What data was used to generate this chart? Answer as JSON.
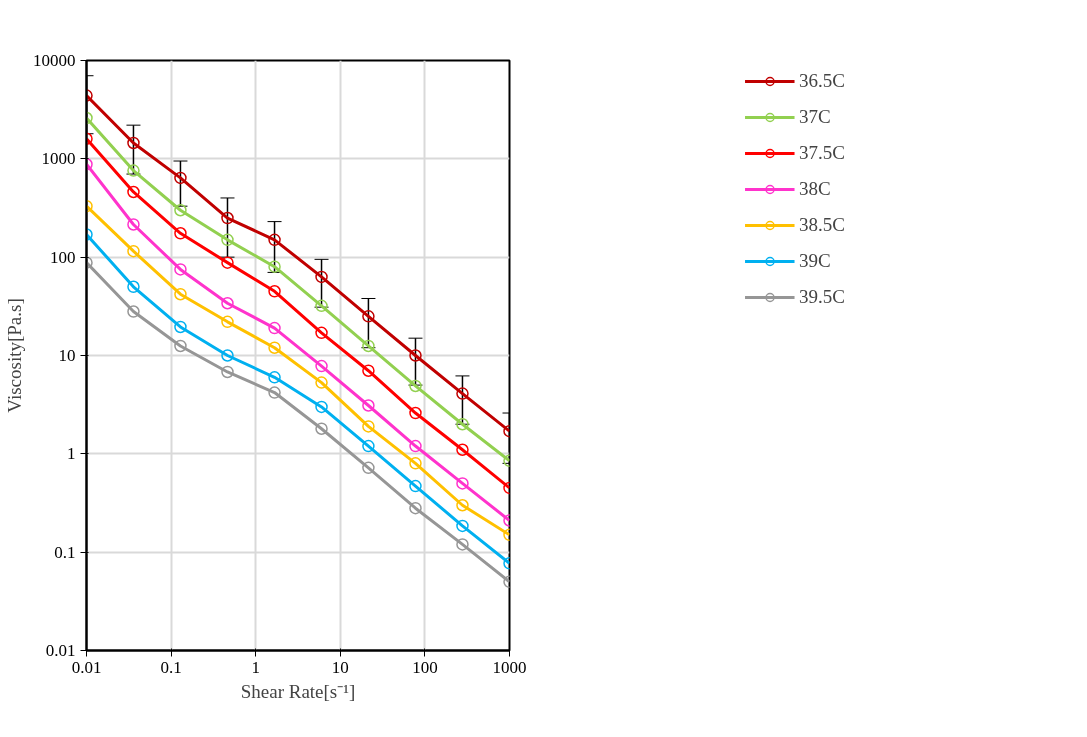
{
  "chart_data": {
    "type": "line",
    "xlabel": "Shear Rate[s⁻¹]",
    "ylabel": "Viscosity[Pa.s]",
    "x": [
      0.01,
      0.0359,
      0.129,
      0.464,
      1.67,
      6,
      21.5,
      77.4,
      278,
      1000
    ],
    "log": "xy",
    "xlim": [
      0.01,
      1000
    ],
    "ylim": [
      0.01,
      10000
    ],
    "xticks": [
      0.01,
      0.1,
      1,
      10,
      100,
      1000
    ],
    "yticks": [
      0.01,
      0.1,
      1,
      10,
      100,
      1000,
      10000
    ],
    "grid": true,
    "legend": "right",
    "marker": "circle",
    "line_style": "solid",
    "series": [
      {
        "name": "36.5C",
        "color": "#c00000",
        "values": [
          4400,
          1450,
          640,
          250,
          150,
          63,
          25,
          10,
          4.1,
          1.7
        ],
        "errors": [
          2600,
          750,
          310,
          150,
          80,
          32,
          13,
          5,
          2.1,
          0.9
        ]
      },
      {
        "name": "37C",
        "color": "#92d050",
        "values": [
          2600,
          760,
          300,
          150,
          80,
          32,
          12.5,
          4.9,
          2.0,
          0.85
        ]
      },
      {
        "name": "37.5C",
        "color": "#ff0000",
        "values": [
          1600,
          460,
          175,
          88,
          45,
          17,
          7,
          2.6,
          1.1,
          0.45
        ]
      },
      {
        "name": "38C",
        "color": "#ff33cc",
        "values": [
          880,
          215,
          75,
          34,
          19,
          7.8,
          3.1,
          1.2,
          0.5,
          0.21
        ]
      },
      {
        "name": "38.5C",
        "color": "#ffc000",
        "values": [
          330,
          115,
          42,
          22,
          12,
          5.3,
          1.9,
          0.8,
          0.3,
          0.15
        ]
      },
      {
        "name": "39C",
        "color": "#00b0f0",
        "values": [
          170,
          50,
          19.5,
          10,
          6,
          3,
          1.2,
          0.47,
          0.185,
          0.077
        ]
      },
      {
        "name": "39.5C",
        "color": "#969696",
        "values": [
          88,
          28,
          12.5,
          6.8,
          4.2,
          1.8,
          0.72,
          0.28,
          0.12,
          0.05
        ]
      }
    ]
  }
}
